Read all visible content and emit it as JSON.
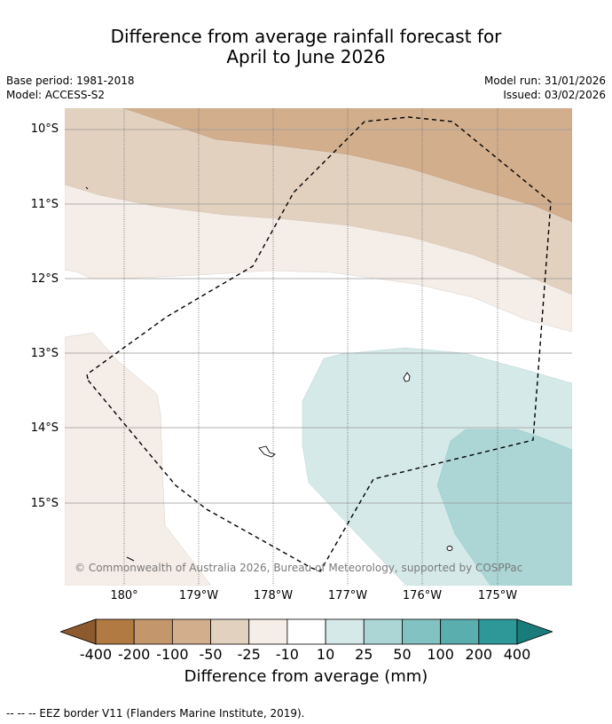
{
  "title": {
    "line1": "Difference from average rainfall forecast for",
    "line2": "April to June 2026"
  },
  "meta": {
    "base_period": "Base period: 1981-2018",
    "model": "Model: ACCESS-S2",
    "model_run": "Model run: 31/01/2026",
    "issued": "Issued: 03/02/2026"
  },
  "map": {
    "lat_labels": [
      "10°S",
      "11°S",
      "12°S",
      "13°S",
      "14°S",
      "15°S"
    ],
    "lon_labels": [
      "180°",
      "179°W",
      "178°W",
      "177°W",
      "176°W",
      "175°W"
    ],
    "copyright": "© Commonwealth of Australia 2026, Bureau of Meteorology, supported by COSPPac",
    "legend_overlay": "EEZ border",
    "colors": {
      "brown_m100": "#d2ae8d",
      "brown_m50": "#e3d1c0",
      "brown_m25": "#f5ede7",
      "teal_25": "#d5e9e8",
      "teal_50": "#acd6d6"
    }
  },
  "colorbar": {
    "ticks": [
      "-400",
      "-200",
      "-100",
      "-50",
      "-25",
      "-10",
      "10",
      "25",
      "50",
      "100",
      "200",
      "400"
    ],
    "colors": [
      "#8c5a2c",
      "#b07a42",
      "#c4966c",
      "#d2ae8d",
      "#e3d1c0",
      "#f5ede7",
      "#ffffff",
      "#d5e9e8",
      "#acd6d6",
      "#83c2c2",
      "#5aaeae",
      "#2e9797",
      "#1a7b7b"
    ],
    "label": "Difference from average (mm)"
  },
  "footnote": "--  --  -- EEZ border V11 (Flanders Marine Institute, 2019)."
}
